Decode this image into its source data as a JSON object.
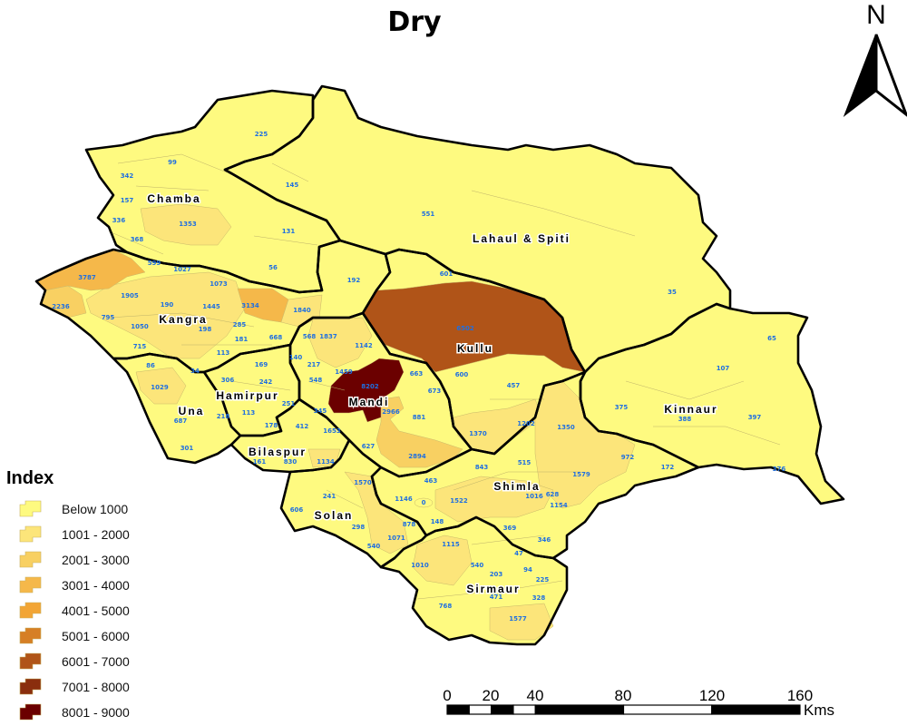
{
  "title": "Dry",
  "north_arrow": {
    "label": "N"
  },
  "colors": {
    "Below 1000": "#FEFA80",
    "1001 - 2000": "#FCE57A",
    "2001 - 3000": "#F8D062",
    "3001 - 4000": "#F5B84A",
    "4001 - 5000": "#F2A535",
    "5001 - 6000": "#D67F25",
    "6001 - 7000": "#B05418",
    "7001 - 8000": "#8A2E0E",
    "8001 - 9000": "#6B0000"
  },
  "legend": {
    "title": "Index",
    "items": [
      "Below 1000",
      "1001 - 2000",
      "2001 - 3000",
      "3001 - 4000",
      "4001 - 5000",
      "5001 - 6000",
      "6001 - 7000",
      "7001 - 8000",
      "8001 - 9000"
    ]
  },
  "districts": {
    "chamba": {
      "name": "Chamba",
      "values": [
        "225",
        "99",
        "342",
        "157",
        "336",
        "368",
        "1353",
        "599",
        "131",
        "56"
      ]
    },
    "lahaul": {
      "name": "Lahaul & Spiti",
      "values": [
        "145",
        "551",
        "35"
      ]
    },
    "kangra": {
      "name": "Kangra",
      "values": [
        "3787",
        "2236",
        "1905",
        "1027",
        "1073",
        "190",
        "1445",
        "3134",
        "1840",
        "795",
        "1050",
        "285",
        "198",
        "181",
        "668",
        "715",
        "113",
        "34",
        "192"
      ]
    },
    "una": {
      "name": "Una",
      "values": [
        "86",
        "1029",
        "687",
        "218",
        "301"
      ]
    },
    "hamirpur": {
      "name": "Hamirpur",
      "values": [
        "169",
        "306",
        "242",
        "251",
        "113",
        "178"
      ]
    },
    "bilaspur": {
      "name": "Bilaspur",
      "values": [
        "412",
        "161",
        "830",
        "1134"
      ]
    },
    "mandi": {
      "name": "Mandi",
      "values": [
        "568",
        "1837",
        "1142",
        "140",
        "217",
        "1459",
        "548",
        "8202",
        "345",
        "663",
        "673",
        "2966",
        "881",
        "1653",
        "627",
        "2894"
      ]
    },
    "kullu": {
      "name": "Kullu",
      "values": [
        "6502",
        "601",
        "600",
        "457",
        "1370",
        "1202"
      ]
    },
    "shimla": {
      "name": "Shimla",
      "values": [
        "1350",
        "843",
        "515",
        "972",
        "172",
        "1579",
        "463",
        "1146",
        "0",
        "1522",
        "1016",
        "628",
        "1154",
        "148",
        "369",
        "346",
        "47",
        "878"
      ]
    },
    "kinnaur": {
      "name": "Kinnaur",
      "values": [
        "65",
        "107",
        "375",
        "388",
        "397",
        "376"
      ]
    },
    "solan": {
      "name": "Solan",
      "values": [
        "1570",
        "241",
        "606",
        "298",
        "1071",
        "540"
      ]
    },
    "sirmaur": {
      "name": "Sirmaur",
      "values": [
        "1115",
        "1010",
        "540",
        "203",
        "94",
        "225",
        "471",
        "328",
        "768",
        "1577"
      ]
    }
  },
  "scale_bar": {
    "ticks": [
      "0",
      "20",
      "40",
      "80",
      "120",
      "160"
    ],
    "unit": "Kms"
  }
}
